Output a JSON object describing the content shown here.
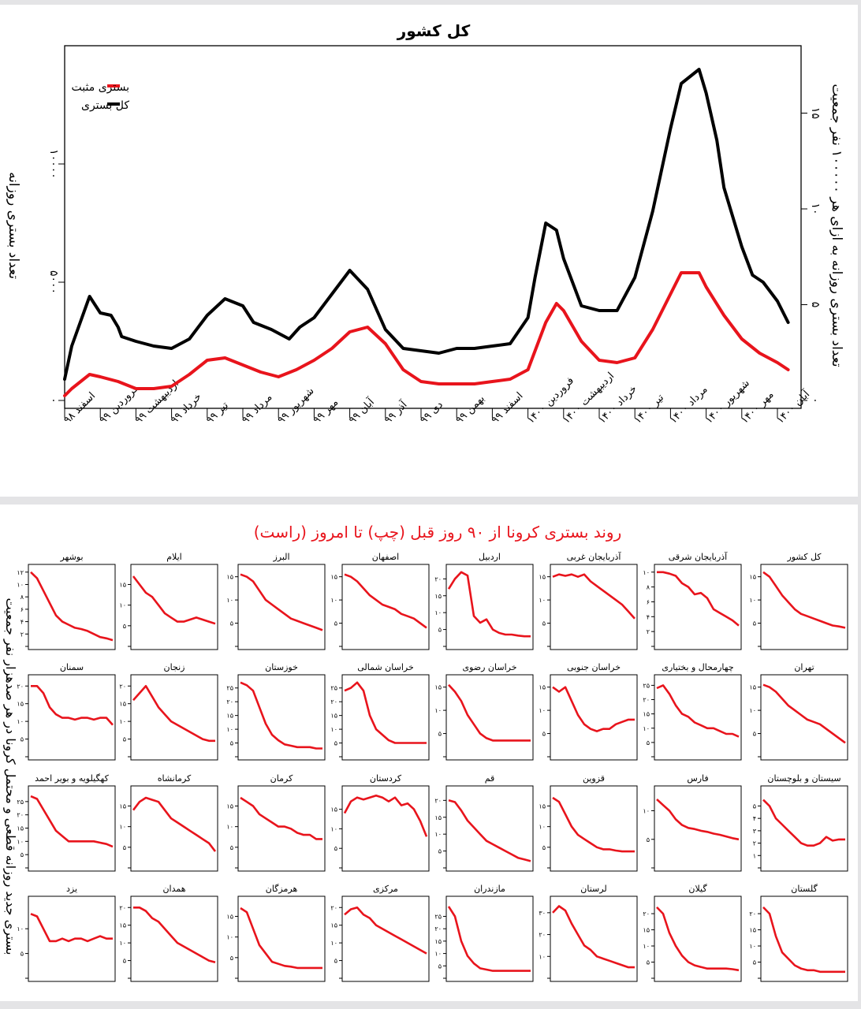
{
  "colors": {
    "positive": "#e8141c",
    "total": "#000000",
    "title_red": "#e8141c"
  },
  "chart_data": [
    {
      "type": "line",
      "title": "کل کشور",
      "ylabel_left": "تعداد بستری روزانه",
      "ylabel_right": "تعداد بستری روزانه به ازای هر ۱۰۰۰۰۰ نفر جمعیت",
      "y_left_ticks": [
        "۰",
        "۵۰۰۰",
        "۱۰۰۰۰"
      ],
      "y_right_ticks": [
        "۰",
        "۵",
        "۱۰",
        "۱۵"
      ],
      "ylim_left": [
        0,
        15000
      ],
      "x_tick_labels": [
        "اسفند ۹۸",
        "فروردین ۹۹",
        "اردیبهشت ۹۹",
        "خرداد ۹۹",
        "تیر ۹۹",
        "مرداد ۹۹",
        "شهریور ۹۹",
        "مهر ۹۹",
        "آبان ۹۹",
        "آذر ۹۹",
        "دی ۹۹",
        "بهمن ۹۹",
        "اسفند ۹۹",
        "فروردین ۱۴۰۰",
        "اردیبهشت ۱۴۰۰",
        "خرداد ۱۴۰۰",
        "تیر ۱۴۰۰",
        "مرداد ۱۴۰۰",
        "شهریور ۱۴۰۰",
        "مهر ۱۴۰۰",
        "آبان ۱۴۰۰"
      ],
      "legend": {
        "position": "top-left",
        "entries": [
          "بستری مثبت",
          "کل بستری"
        ]
      },
      "series": [
        {
          "name": "کل بستری",
          "color": "#000000",
          "x": [
            0,
            0.2,
            0.7,
            1.0,
            1.3,
            1.5,
            1.6,
            2.0,
            2.5,
            3.0,
            3.5,
            4.0,
            4.5,
            5.0,
            5.3,
            5.8,
            6.3,
            6.6,
            7.0,
            7.5,
            8.0,
            8.5,
            9.0,
            9.5,
            10.0,
            10.5,
            11.0,
            11.5,
            12.0,
            12.5,
            13.0,
            13.2,
            13.5,
            13.8,
            14.0,
            14.5,
            15.0,
            15.5,
            16.0,
            16.5,
            17.0,
            17.3,
            17.8,
            18.0,
            18.3,
            18.5,
            19.0,
            19.3,
            19.6,
            20.0,
            20.3
          ],
          "values": [
            900,
            2300,
            4400,
            3700,
            3600,
            3100,
            2700,
            2500,
            2300,
            2200,
            2600,
            3600,
            4300,
            4000,
            3300,
            3000,
            2600,
            3100,
            3500,
            4500,
            5500,
            4700,
            3000,
            2200,
            2100,
            2000,
            2200,
            2200,
            2300,
            2400,
            3500,
            5200,
            7500,
            7200,
            6000,
            4000,
            3800,
            3800,
            5200,
            8000,
            11500,
            13400,
            14000,
            13000,
            11000,
            9000,
            6500,
            5300,
            5000,
            4200,
            3300
          ]
        },
        {
          "name": "بستری مثبت",
          "color": "#e8141c",
          "x": [
            0,
            0.2,
            0.7,
            1.0,
            1.5,
            2.0,
            2.5,
            3.0,
            3.5,
            4.0,
            4.5,
            5.0,
            5.5,
            6.0,
            6.5,
            7.0,
            7.5,
            8.0,
            8.5,
            9.0,
            9.5,
            10.0,
            10.5,
            11.0,
            11.5,
            12.0,
            12.5,
            13.0,
            13.5,
            13.8,
            14.0,
            14.5,
            15.0,
            15.5,
            16.0,
            16.5,
            17.0,
            17.3,
            17.8,
            18.0,
            18.5,
            19.0,
            19.5,
            20.0,
            20.3
          ],
          "values": [
            200,
            500,
            1100,
            1000,
            800,
            500,
            500,
            600,
            1100,
            1700,
            1800,
            1500,
            1200,
            1000,
            1300,
            1700,
            2200,
            2900,
            3100,
            2400,
            1300,
            800,
            700,
            700,
            700,
            800,
            900,
            1300,
            3300,
            4100,
            3800,
            2500,
            1700,
            1600,
            1800,
            3000,
            4500,
            5400,
            5400,
            4800,
            3600,
            2600,
            2000,
            1600,
            1300
          ]
        }
      ]
    },
    {
      "type": "line",
      "title": "روند بستری کرونا از ۹۰ روز قبل (چپ) تا امروز (راست)",
      "ylabel": "بستری جدید روزانه قطعی و محتمل کرونا در هر صدهزار نفر جمعیت",
      "x_range": [
        0,
        90
      ],
      "panels": [
        {
          "name": "کل کشور",
          "ymax": 16,
          "ticks": [
            "۵",
            "۱۰",
            "۱۵"
          ],
          "values": [
            16,
            15,
            13,
            11,
            9.5,
            8,
            7,
            6.5,
            6,
            5.5,
            5,
            4.5,
            4.3,
            4
          ]
        },
        {
          "name": "آذربایجان شرقی",
          "ymax": 10,
          "ticks": [
            "۲",
            "۴",
            "۶",
            "۸",
            "۱۰"
          ],
          "values": [
            10,
            10,
            9.8,
            9.5,
            8.5,
            8,
            7,
            7.2,
            6.5,
            5,
            4.5,
            4,
            3.5,
            2.8
          ]
        },
        {
          "name": "آذربایجان غربی",
          "ymax": 16,
          "ticks": [
            "۵",
            "۱۰",
            "۱۵"
          ],
          "values": [
            15,
            15.5,
            15.2,
            15.5,
            15,
            15.5,
            14,
            13,
            12,
            11,
            10,
            9,
            7.5,
            6
          ]
        },
        {
          "name": "اردبیل",
          "ymax": 22,
          "ticks": [
            "۵",
            "۱۰",
            "۱۵",
            "۲۰"
          ],
          "values": [
            17,
            20,
            22,
            21,
            9,
            7,
            8,
            5,
            4,
            3.5,
            3.5,
            3.2,
            3,
            3
          ]
        },
        {
          "name": "اصفهان",
          "ymax": 16,
          "ticks": [
            "۵",
            "۱۰",
            "۱۵"
          ],
          "values": [
            15.5,
            15,
            14,
            12.5,
            11,
            10,
            9,
            8.5,
            8,
            7,
            6.5,
            6,
            5,
            4
          ]
        },
        {
          "name": "البرز",
          "ymax": 16,
          "ticks": [
            "۵",
            "۱۰",
            "۱۵"
          ],
          "values": [
            15.5,
            15,
            14,
            12,
            10,
            9,
            8,
            7,
            6,
            5.5,
            5,
            4.5,
            4,
            3.5
          ]
        },
        {
          "name": "ایلام",
          "ymax": 18,
          "ticks": [
            "۵",
            "۱۰",
            "۱۵"
          ],
          "values": [
            17,
            15,
            13,
            12,
            10,
            8,
            7,
            6,
            6,
            6.5,
            7,
            6.5,
            6,
            5.5
          ]
        },
        {
          "name": "بوشهر",
          "ymax": 12,
          "ticks": [
            "۲",
            "۴",
            "۶",
            "۸",
            "۱۰",
            "۱۲"
          ],
          "values": [
            12,
            11,
            9,
            7,
            5,
            4,
            3.5,
            3,
            2.8,
            2.5,
            2,
            1.5,
            1.3,
            1
          ]
        },
        {
          "name": "تهران",
          "ymax": 16,
          "ticks": [
            "۵",
            "۱۰",
            "۱۵"
          ],
          "values": [
            15.5,
            15,
            14,
            12.5,
            11,
            10,
            9,
            8,
            7.5,
            7,
            6,
            5,
            4,
            3
          ]
        },
        {
          "name": "چهارمحال و بختیاری",
          "ymax": 26,
          "ticks": [
            "۵",
            "۱۰",
            "۱۵",
            "۲۰",
            "۲۵"
          ],
          "values": [
            24,
            25,
            22,
            18,
            15,
            14,
            12,
            11,
            10,
            10,
            9,
            8,
            8,
            7
          ]
        },
        {
          "name": "خراسان جنوبی",
          "ymax": 16,
          "ticks": [
            "۵",
            "۱۰",
            "۱۵"
          ],
          "values": [
            15,
            14,
            15,
            12,
            9,
            7,
            6,
            5.5,
            6,
            6,
            7,
            7.5,
            8,
            8
          ]
        },
        {
          "name": "خراسان رضوی",
          "ymax": 16,
          "ticks": [
            "۵",
            "۱۰",
            "۱۵"
          ],
          "values": [
            15.5,
            14,
            12,
            9,
            7,
            5,
            4,
            3.5,
            3.5,
            3.5,
            3.5,
            3.5,
            3.5,
            3.5
          ]
        },
        {
          "name": "خراسان شمالی",
          "ymax": 27,
          "ticks": [
            "۵",
            "۱۰",
            "۱۵",
            "۲۰",
            "۲۵"
          ],
          "values": [
            24,
            25,
            27,
            24,
            15,
            10,
            8,
            6,
            5,
            5,
            5,
            5,
            5,
            5
          ]
        },
        {
          "name": "خوزستان",
          "ymax": 27,
          "ticks": [
            "۵",
            "۱۰",
            "۱۵",
            "۲۰",
            "۲۵"
          ],
          "values": [
            27,
            26,
            24,
            18,
            12,
            8,
            6,
            4.5,
            4,
            3.5,
            3.5,
            3.5,
            3,
            3
          ]
        },
        {
          "name": "زنجان",
          "ymax": 21,
          "ticks": [
            "۵",
            "۱۰",
            "۱۵",
            "۲۰"
          ],
          "values": [
            16,
            18,
            20,
            17,
            14,
            12,
            10,
            9,
            8,
            7,
            6,
            5,
            4.5,
            4.5
          ]
        },
        {
          "name": "سمنان",
          "ymax": 21,
          "ticks": [
            "۵",
            "۱۰",
            "۱۵",
            "۲۰"
          ],
          "values": [
            20,
            20,
            18,
            14,
            12,
            11,
            11,
            10.5,
            11,
            11,
            10.5,
            11,
            11,
            9
          ]
        },
        {
          "name": "سیستان و بلوچستان",
          "ymax": 6,
          "ticks": [
            "۱",
            "۲",
            "۳",
            "۴",
            "۵"
          ],
          "values": [
            5.5,
            5,
            4,
            3.5,
            3,
            2.5,
            2,
            1.8,
            1.8,
            2,
            2.5,
            2.2,
            2.3,
            2.3
          ]
        },
        {
          "name": "فارس",
          "ymax": 13,
          "ticks": [
            "۵",
            "۱۰"
          ],
          "values": [
            12,
            11,
            10,
            8.5,
            7.5,
            7,
            6.8,
            6.5,
            6.3,
            6,
            5.8,
            5.5,
            5.2,
            5
          ]
        },
        {
          "name": "قزوین",
          "ymax": 18,
          "ticks": [
            "۵",
            "۱۰",
            "۱۵"
          ],
          "values": [
            17,
            16,
            13,
            10,
            8,
            7,
            6,
            5,
            4.5,
            4.5,
            4.2,
            4,
            4,
            4
          ]
        },
        {
          "name": "قم",
          "ymax": 22,
          "ticks": [
            "۵",
            "۱۰",
            "۱۵",
            "۲۰"
          ],
          "values": [
            20,
            19.5,
            17,
            14,
            12,
            10,
            8,
            7,
            6,
            5,
            4,
            3,
            2.5,
            2
          ]
        },
        {
          "name": "کردستان",
          "ymax": 19,
          "ticks": [
            "۵",
            "۱۰",
            "۱۵"
          ],
          "values": [
            14,
            17,
            18,
            17.5,
            18,
            18.5,
            18,
            17,
            18,
            16,
            16.5,
            15,
            12,
            8
          ]
        },
        {
          "name": "کرمان",
          "ymax": 18,
          "ticks": [
            "۵",
            "۱۰",
            "۱۵"
          ],
          "values": [
            17,
            16,
            15,
            13,
            12,
            11,
            10,
            10,
            9.5,
            8.5,
            8,
            8,
            7,
            7
          ]
        },
        {
          "name": "کرمانشاه",
          "ymax": 18,
          "ticks": [
            "۵",
            "۱۰",
            "۱۵"
          ],
          "values": [
            14,
            16,
            17,
            16.5,
            16,
            14,
            12,
            11,
            10,
            9,
            8,
            7,
            6,
            4
          ]
        },
        {
          "name": "کهگیلویه و بویر احمد",
          "ymax": 28,
          "ticks": [
            "۵",
            "۱۰",
            "۱۵",
            "۲۰",
            "۲۵"
          ],
          "values": [
            27,
            26,
            22,
            18,
            14,
            12,
            10,
            10,
            10,
            10,
            10,
            9.5,
            9,
            8
          ]
        },
        {
          "name": "گلستان",
          "ymax": 23,
          "ticks": [
            "۵",
            "۱۰",
            "۱۵",
            "۲۰"
          ],
          "values": [
            22,
            20,
            13,
            8,
            6,
            4,
            3,
            2.5,
            2.5,
            2,
            2,
            2,
            2,
            2
          ]
        },
        {
          "name": "گیلان",
          "ymax": 23,
          "ticks": [
            "۵",
            "۱۰",
            "۱۵",
            "۲۰"
          ],
          "values": [
            22,
            20,
            14,
            10,
            7,
            5,
            4,
            3.5,
            3,
            3,
            3,
            3,
            2.8,
            2.5
          ]
        },
        {
          "name": "لرستان",
          "ymax": 34,
          "ticks": [
            "۱۰",
            "۲۰",
            "۳۰"
          ],
          "values": [
            30,
            33,
            31,
            25,
            20,
            15,
            13,
            10,
            9,
            8,
            7,
            6,
            5,
            5
          ]
        },
        {
          "name": "مازندران",
          "ymax": 30,
          "ticks": [
            "۵",
            "۱۰",
            "۱۵",
            "۲۰",
            "۲۵"
          ],
          "values": [
            29,
            25,
            15,
            9,
            6,
            4,
            3.5,
            3,
            3,
            3,
            3,
            3,
            3,
            3
          ]
        },
        {
          "name": "مرکزی",
          "ymax": 21,
          "ticks": [
            "۵",
            "۱۰",
            "۱۵",
            "۲۰"
          ],
          "values": [
            18,
            19.5,
            20,
            18,
            17,
            15,
            14,
            13,
            12,
            11,
            10,
            9,
            8,
            7
          ]
        },
        {
          "name": "هرمزگان",
          "ymax": 18,
          "ticks": [
            "۵",
            "۱۰",
            "۱۵"
          ],
          "values": [
            17,
            16,
            12,
            8,
            6,
            4,
            3.5,
            3,
            2.8,
            2.5,
            2.5,
            2.5,
            2.5,
            2.5
          ]
        },
        {
          "name": "همدان",
          "ymax": 21,
          "ticks": [
            "۵",
            "۱۰",
            "۱۵",
            "۲۰"
          ],
          "values": [
            20,
            20,
            19,
            17,
            16,
            14,
            12,
            10,
            9,
            8,
            7,
            6,
            5,
            4.5
          ]
        },
        {
          "name": "یزد",
          "ymax": 15,
          "ticks": [
            "۵",
            "۱۰"
          ],
          "values": [
            13,
            12.5,
            10,
            7.5,
            7.5,
            8,
            7.5,
            8,
            8,
            7.5,
            8,
            8.5,
            8,
            8
          ]
        }
      ]
    }
  ]
}
